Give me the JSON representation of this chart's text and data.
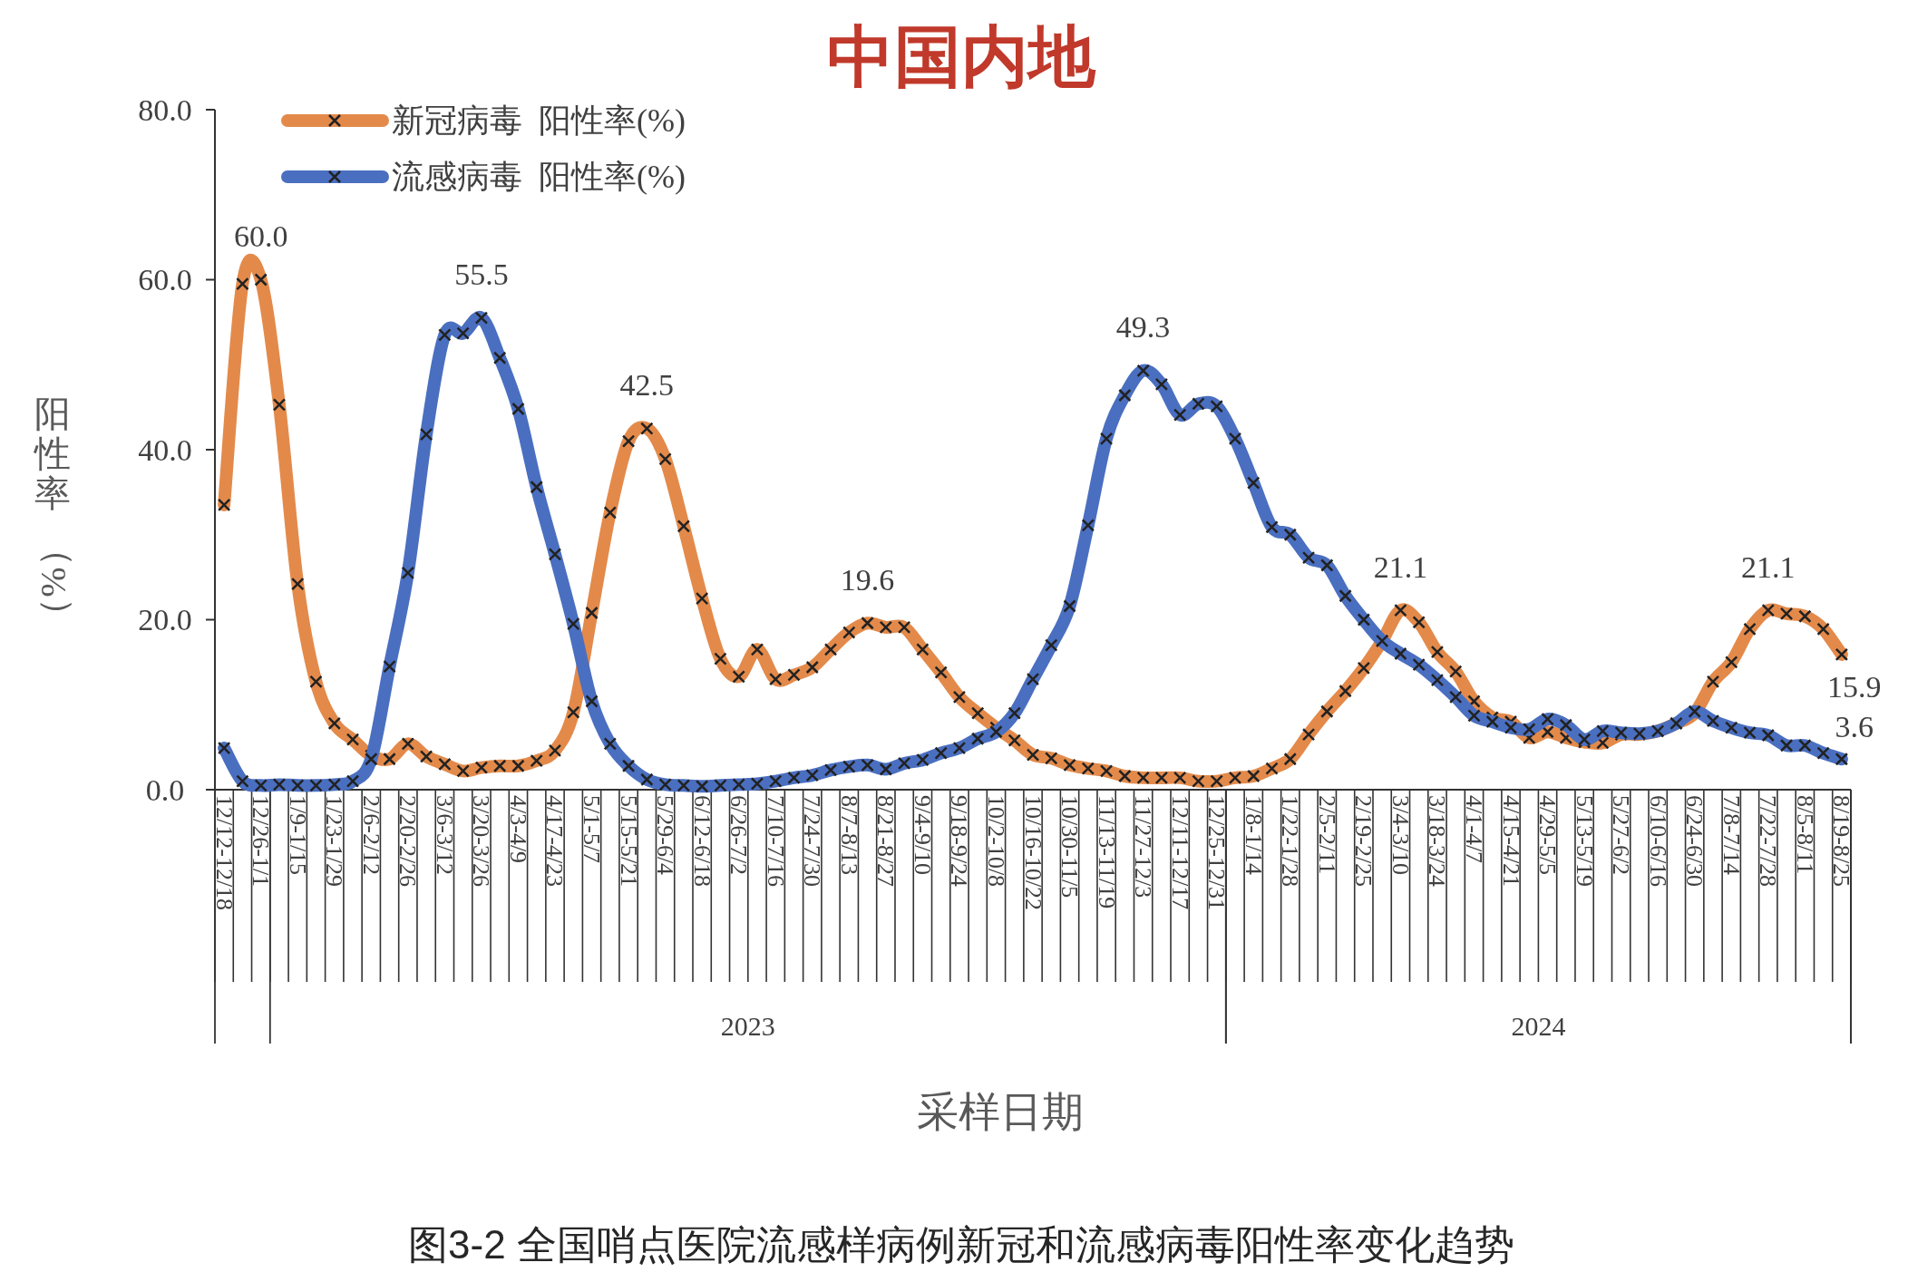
{
  "chart_data": {
    "type": "line",
    "title": "中国内地",
    "xlabel": "采样日期",
    "ylabel": "阳性率（%）",
    "annotations": [
      "图3-2 全国哨点医院流感样病例新冠和流感病毒阳性率变化趋势",
      "2023",
      "2024"
    ],
    "categories": [
      "12/12-12/18",
      null,
      "12/26-1/1",
      null,
      "1/9-1/15",
      null,
      "1/23-1/29",
      null,
      "2/6-2/12",
      null,
      "2/20-2/26",
      null,
      "3/6-3/12",
      null,
      "3/20-3/26",
      null,
      "4/3-4/9",
      null,
      "4/17-4/23",
      null,
      "5/1-5/7",
      null,
      "5/15-5/21",
      null,
      "5/29-6/4",
      null,
      "6/12-6/18",
      null,
      "6/26-7/2",
      null,
      "7/10-7/16",
      null,
      "7/24-7/30",
      null,
      "8/7-8/13",
      null,
      "8/21-8/27",
      null,
      "9/4-9/10",
      null,
      "9/18-9/24",
      null,
      "10/2-10/8",
      null,
      "10/16-10/22",
      null,
      "10/30-11/5",
      null,
      "11/13-11/19",
      null,
      "11/27-12/3",
      null,
      "12/11-12/17",
      null,
      "12/25-12/31",
      null,
      "1/8-1/14",
      null,
      "1/22-1/28",
      null,
      "2/5-2/11",
      null,
      "2/19-2/25",
      null,
      "3/4-3/10",
      null,
      "3/18-3/24",
      null,
      "4/1-4/7",
      null,
      "4/15-4/21",
      null,
      "4/29-5/5",
      null,
      "5/13-5/19",
      null,
      "5/27-6/2",
      null,
      "6/10-6/16",
      null,
      "6/24-6/30",
      null,
      "7/8-7/14",
      null,
      "7/22-7/28",
      null,
      "8/5-8/11",
      null,
      "8/19-8/25"
    ],
    "series": [
      {
        "name": "新冠病毒  阳性率(%)",
        "color": "#e38a4b",
        "values": [
          33.5,
          59.5,
          60.0,
          45.3,
          24.2,
          12.7,
          7.8,
          5.9,
          4.0,
          3.6,
          5.4,
          3.9,
          3.0,
          2.2,
          2.6,
          2.8,
          2.8,
          3.4,
          4.6,
          9.1,
          20.8,
          32.6,
          41.0,
          42.5,
          38.9,
          31.0,
          22.5,
          15.4,
          13.3,
          16.5,
          13.0,
          13.5,
          14.4,
          16.5,
          18.5,
          19.6,
          19.1,
          19.1,
          16.5,
          13.8,
          10.9,
          9.0,
          7.3,
          5.8,
          4.1,
          3.7,
          2.9,
          2.5,
          2.2,
          1.6,
          1.4,
          1.4,
          1.4,
          1.0,
          1.0,
          1.4,
          1.6,
          2.5,
          3.6,
          6.5,
          9.2,
          11.6,
          14.3,
          17.5,
          21.1,
          19.7,
          16.2,
          13.9,
          10.4,
          8.5,
          8.0,
          6.1,
          6.8,
          6.1,
          5.6,
          5.5,
          6.5,
          6.5,
          6.9,
          7.8,
          9.0,
          12.7,
          15.0,
          18.9,
          21.1,
          20.7,
          20.4,
          18.9,
          15.9
        ],
        "value_labels": [
          null,
          null,
          "60.0",
          null,
          null,
          null,
          null,
          null,
          null,
          null,
          null,
          null,
          null,
          null,
          null,
          null,
          null,
          null,
          null,
          null,
          null,
          null,
          null,
          "42.5",
          null,
          null,
          null,
          null,
          null,
          null,
          null,
          null,
          null,
          null,
          null,
          "19.6",
          null,
          null,
          null,
          null,
          null,
          null,
          null,
          null,
          null,
          null,
          null,
          null,
          null,
          null,
          null,
          null,
          null,
          null,
          null,
          null,
          null,
          null,
          null,
          null,
          null,
          null,
          null,
          null,
          "21.1",
          null,
          null,
          null,
          null,
          null,
          null,
          null,
          null,
          null,
          null,
          null,
          null,
          null,
          null,
          null,
          null,
          null,
          null,
          null,
          "21.1",
          null,
          null,
          null,
          "15.9"
        ]
      },
      {
        "name": "流感病毒  阳性率(%)",
        "color": "#4a6fc0",
        "values": [
          4.9,
          1.0,
          0.5,
          0.6,
          0.5,
          0.5,
          0.6,
          1.0,
          3.6,
          14.5,
          25.5,
          41.8,
          53.5,
          53.7,
          55.5,
          50.8,
          44.8,
          35.6,
          27.7,
          19.5,
          10.4,
          5.4,
          2.8,
          1.2,
          0.6,
          0.5,
          0.4,
          0.5,
          0.6,
          0.7,
          1.0,
          1.4,
          1.7,
          2.3,
          2.7,
          2.9,
          2.4,
          3.1,
          3.5,
          4.3,
          4.9,
          6.0,
          6.8,
          9.0,
          13.0,
          17.0,
          21.6,
          31.1,
          41.3,
          46.4,
          49.3,
          47.7,
          44.1,
          45.4,
          45.1,
          41.3,
          36.1,
          30.9,
          30.0,
          27.3,
          26.4,
          22.8,
          20.0,
          17.5,
          16.0,
          14.7,
          12.9,
          10.9,
          8.7,
          8.0,
          7.3,
          7.1,
          8.3,
          7.6,
          5.9,
          6.9,
          6.7,
          6.6,
          6.9,
          7.8,
          9.2,
          8.1,
          7.3,
          6.7,
          6.4,
          5.2,
          5.2,
          4.3,
          3.6
        ],
        "value_labels": [
          null,
          null,
          null,
          null,
          null,
          null,
          null,
          null,
          null,
          null,
          null,
          null,
          null,
          null,
          "55.5",
          null,
          null,
          null,
          null,
          null,
          null,
          null,
          null,
          null,
          null,
          null,
          null,
          null,
          null,
          null,
          null,
          null,
          null,
          null,
          null,
          null,
          null,
          null,
          null,
          null,
          null,
          null,
          null,
          null,
          null,
          null,
          null,
          null,
          null,
          null,
          "49.3",
          null,
          null,
          null,
          null,
          null,
          null,
          null,
          null,
          null,
          null,
          null,
          null,
          null,
          null,
          null,
          null,
          null,
          null,
          null,
          null,
          null,
          null,
          null,
          null,
          null,
          null,
          null,
          null,
          null,
          null,
          null,
          null,
          null,
          null,
          null,
          null,
          null,
          "3.6"
        ]
      }
    ],
    "ylim": [
      0,
      80
    ],
    "yticks": [
      {
        "value": 0,
        "label": "0.0"
      },
      {
        "value": 20,
        "label": "20.0"
      },
      {
        "value": 40,
        "label": "40.0"
      },
      {
        "value": 60,
        "label": "60.0"
      },
      {
        "value": 80,
        "label": "80.0"
      }
    ],
    "legend": "top left",
    "marker": "cross",
    "line_style": "solid"
  }
}
